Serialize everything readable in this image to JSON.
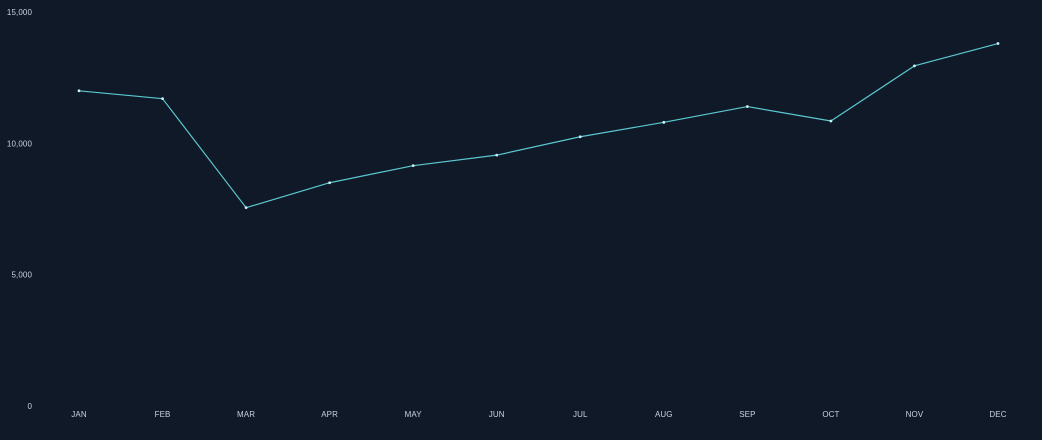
{
  "colors": {
    "background": "#0f1928",
    "line": "#5cc8cf",
    "marker": "#c9f1f3",
    "tick_text": "#c9d2dd"
  },
  "chart_data": {
    "type": "line",
    "title": "",
    "xlabel": "",
    "ylabel": "",
    "categories": [
      "JAN",
      "FEB",
      "MAR",
      "APR",
      "MAY",
      "JUN",
      "JUL",
      "AUG",
      "SEP",
      "OCT",
      "NOV",
      "DEC"
    ],
    "series": [
      {
        "values": [
          12000,
          11700,
          7550,
          8500,
          9150,
          9550,
          10250,
          10800,
          11400,
          10850,
          12950,
          13800
        ]
      }
    ],
    "ylim": [
      0,
      15000
    ],
    "y_ticks": [
      0,
      5000,
      10000,
      15000
    ],
    "y_tick_labels": [
      "0",
      "5,000",
      "10,000",
      "15,000"
    ],
    "grid": false,
    "legend": "none",
    "markers": true
  }
}
